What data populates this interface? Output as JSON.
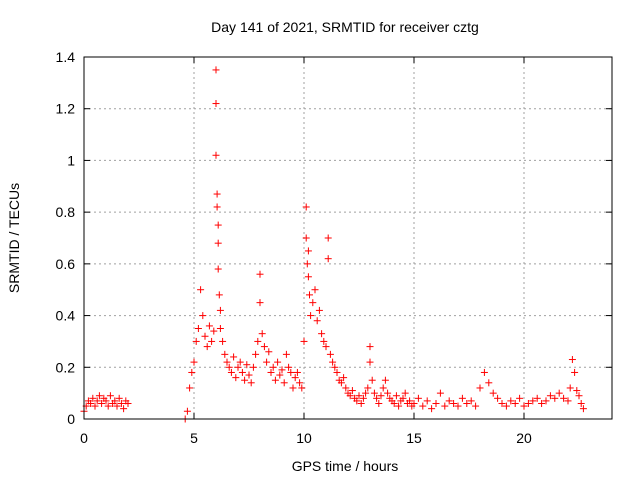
{
  "chart_data": {
    "type": "scatter",
    "title": "Day 141 of 2021, SRMTID for receiver cztg",
    "xlabel": "GPS time / hours",
    "ylabel": "SRMTID / TECUs",
    "xlim": [
      0,
      24
    ],
    "ylim": [
      0,
      1.4
    ],
    "x_ticks": [
      0,
      5,
      10,
      15,
      20
    ],
    "x_tick_labels": [
      "0",
      "5",
      "10",
      "15",
      "20"
    ],
    "y_ticks": [
      0,
      0.2,
      0.4,
      0.6,
      0.8,
      1.0,
      1.2,
      1.4
    ],
    "y_tick_labels": [
      "0",
      "0.2",
      "0.4",
      "0.6",
      "0.8",
      "1",
      "1.2",
      "1.4"
    ],
    "grid": true,
    "marker": "+",
    "color": "#ff0000",
    "series": [
      {
        "name": "SRMTID",
        "x": [
          0.0,
          0.1,
          0.2,
          0.3,
          0.4,
          0.5,
          0.6,
          0.7,
          0.8,
          0.9,
          1.0,
          1.1,
          1.2,
          1.3,
          1.4,
          1.5,
          1.6,
          1.7,
          1.8,
          1.9,
          2.0,
          4.6,
          4.7,
          4.8,
          4.9,
          5.0,
          5.1,
          5.2,
          5.3,
          5.4,
          5.5,
          5.6,
          5.7,
          5.8,
          5.9,
          6.0,
          6.0,
          6.0,
          6.05,
          6.05,
          6.1,
          6.1,
          6.1,
          6.15,
          6.2,
          6.2,
          6.3,
          6.4,
          6.5,
          6.6,
          6.7,
          6.8,
          6.9,
          7.0,
          7.1,
          7.2,
          7.3,
          7.4,
          7.5,
          7.6,
          7.7,
          7.8,
          7.9,
          8.0,
          8.0,
          8.1,
          8.2,
          8.3,
          8.4,
          8.5,
          8.6,
          8.7,
          8.8,
          8.9,
          9.0,
          9.1,
          9.2,
          9.3,
          9.4,
          9.5,
          9.6,
          9.7,
          9.8,
          9.9,
          10.0,
          10.1,
          10.1,
          10.15,
          10.2,
          10.2,
          10.25,
          10.3,
          10.4,
          10.5,
          10.6,
          10.7,
          10.8,
          10.9,
          11.0,
          11.1,
          11.1,
          11.2,
          11.3,
          11.4,
          11.5,
          11.6,
          11.7,
          11.8,
          11.9,
          12.0,
          12.1,
          12.2,
          12.3,
          12.4,
          12.5,
          12.6,
          12.7,
          12.8,
          12.9,
          13.0,
          13.0,
          13.1,
          13.2,
          13.3,
          13.4,
          13.5,
          13.6,
          13.7,
          13.8,
          13.9,
          14.0,
          14.1,
          14.2,
          14.3,
          14.4,
          14.5,
          14.6,
          14.7,
          14.8,
          14.9,
          15.0,
          15.2,
          15.4,
          15.6,
          15.8,
          16.0,
          16.2,
          16.4,
          16.6,
          16.8,
          17.0,
          17.2,
          17.4,
          17.6,
          17.8,
          18.0,
          18.2,
          18.4,
          18.6,
          18.8,
          19.0,
          19.2,
          19.4,
          19.6,
          19.8,
          20.0,
          20.2,
          20.4,
          20.6,
          20.8,
          21.0,
          21.2,
          21.4,
          21.6,
          21.8,
          22.0,
          22.1,
          22.2,
          22.3,
          22.4,
          22.5,
          22.6,
          22.7
        ],
        "y": [
          0.03,
          0.05,
          0.07,
          0.06,
          0.08,
          0.05,
          0.07,
          0.09,
          0.06,
          0.08,
          0.07,
          0.05,
          0.09,
          0.06,
          0.07,
          0.05,
          0.08,
          0.06,
          0.04,
          0.07,
          0.06,
          0.0,
          0.03,
          0.12,
          0.18,
          0.22,
          0.3,
          0.35,
          0.5,
          0.4,
          0.32,
          0.28,
          0.36,
          0.3,
          0.34,
          1.35,
          1.22,
          1.02,
          0.87,
          0.82,
          0.75,
          0.68,
          0.58,
          0.48,
          0.42,
          0.35,
          0.3,
          0.25,
          0.22,
          0.2,
          0.18,
          0.24,
          0.16,
          0.2,
          0.22,
          0.18,
          0.15,
          0.21,
          0.17,
          0.14,
          0.2,
          0.25,
          0.3,
          0.56,
          0.45,
          0.33,
          0.28,
          0.22,
          0.26,
          0.18,
          0.2,
          0.15,
          0.22,
          0.17,
          0.19,
          0.14,
          0.25,
          0.2,
          0.18,
          0.12,
          0.16,
          0.18,
          0.14,
          0.12,
          0.3,
          0.82,
          0.7,
          0.6,
          0.55,
          0.65,
          0.48,
          0.4,
          0.45,
          0.5,
          0.38,
          0.42,
          0.33,
          0.3,
          0.28,
          0.7,
          0.62,
          0.25,
          0.22,
          0.2,
          0.18,
          0.15,
          0.14,
          0.16,
          0.12,
          0.1,
          0.09,
          0.11,
          0.08,
          0.07,
          0.09,
          0.06,
          0.08,
          0.1,
          0.12,
          0.28,
          0.22,
          0.15,
          0.1,
          0.08,
          0.06,
          0.09,
          0.12,
          0.15,
          0.1,
          0.08,
          0.07,
          0.06,
          0.09,
          0.05,
          0.07,
          0.08,
          0.1,
          0.06,
          0.07,
          0.05,
          0.06,
          0.08,
          0.05,
          0.07,
          0.04,
          0.06,
          0.1,
          0.05,
          0.07,
          0.06,
          0.05,
          0.08,
          0.06,
          0.07,
          0.05,
          0.12,
          0.18,
          0.14,
          0.1,
          0.08,
          0.06,
          0.05,
          0.07,
          0.06,
          0.08,
          0.05,
          0.06,
          0.07,
          0.08,
          0.06,
          0.07,
          0.09,
          0.08,
          0.1,
          0.08,
          0.07,
          0.12,
          0.23,
          0.18,
          0.11,
          0.09,
          0.06,
          0.04
        ]
      }
    ]
  }
}
